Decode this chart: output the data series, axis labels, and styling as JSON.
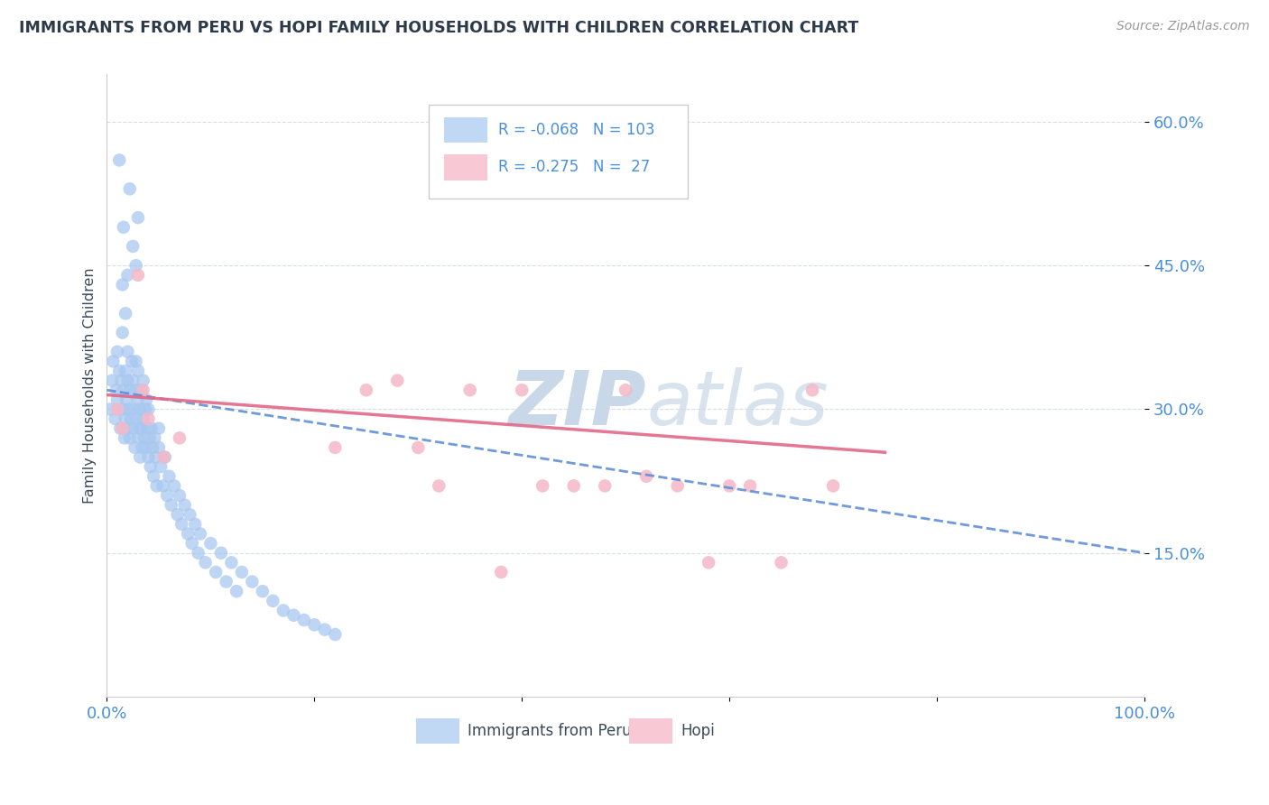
{
  "title": "IMMIGRANTS FROM PERU VS HOPI FAMILY HOUSEHOLDS WITH CHILDREN CORRELATION CHART",
  "source": "Source: ZipAtlas.com",
  "ylabel": "Family Households with Children",
  "legend_label1": "Immigrants from Peru",
  "legend_label2": "Hopi",
  "r1": "-0.068",
  "n1": "103",
  "r2": "-0.275",
  "n2": "27",
  "xlim": [
    0.0,
    1.0
  ],
  "ylim": [
    0.0,
    0.65
  ],
  "yticks": [
    0.15,
    0.3,
    0.45,
    0.6
  ],
  "ytick_labels": [
    "15.0%",
    "30.0%",
    "45.0%",
    "60.0%"
  ],
  "xticks": [
    0.0,
    0.2,
    0.4,
    0.6,
    0.8,
    1.0
  ],
  "xtick_labels": [
    "0.0%",
    "",
    "",
    "",
    "",
    "100.0%"
  ],
  "color_blue": "#a8c8f0",
  "color_pink": "#f5b8c8",
  "line_blue": "#6090d8",
  "line_pink": "#e06888",
  "watermark_color": "#c8d8e8",
  "title_color": "#2d3a4a",
  "axis_label_color": "#3a4a5a",
  "tick_label_color": "#4a90d9",
  "grid_color": "#d8dde8",
  "background_color": "#ffffff",
  "legend_box_color_blue": "#c0d8f4",
  "legend_box_color_pink": "#f8c8d4",
  "peru_x": [
    0.003,
    0.005,
    0.006,
    0.008,
    0.009,
    0.01,
    0.01,
    0.012,
    0.013,
    0.014,
    0.015,
    0.015,
    0.016,
    0.017,
    0.018,
    0.018,
    0.019,
    0.02,
    0.02,
    0.02,
    0.021,
    0.022,
    0.022,
    0.023,
    0.024,
    0.025,
    0.025,
    0.026,
    0.027,
    0.028,
    0.028,
    0.029,
    0.03,
    0.03,
    0.03,
    0.031,
    0.032,
    0.032,
    0.033,
    0.033,
    0.034,
    0.035,
    0.035,
    0.036,
    0.037,
    0.038,
    0.038,
    0.039,
    0.04,
    0.04,
    0.041,
    0.042,
    0.043,
    0.044,
    0.045,
    0.046,
    0.047,
    0.048,
    0.05,
    0.05,
    0.052,
    0.054,
    0.056,
    0.058,
    0.06,
    0.062,
    0.065,
    0.068,
    0.07,
    0.072,
    0.075,
    0.078,
    0.08,
    0.082,
    0.085,
    0.088,
    0.09,
    0.095,
    0.1,
    0.105,
    0.11,
    0.115,
    0.12,
    0.125,
    0.13,
    0.14,
    0.15,
    0.16,
    0.17,
    0.18,
    0.19,
    0.2,
    0.21,
    0.22,
    0.025,
    0.03,
    0.022,
    0.028,
    0.015,
    0.018,
    0.012,
    0.016,
    0.02
  ],
  "peru_y": [
    0.3,
    0.33,
    0.35,
    0.29,
    0.32,
    0.31,
    0.36,
    0.34,
    0.28,
    0.33,
    0.3,
    0.38,
    0.32,
    0.27,
    0.34,
    0.29,
    0.31,
    0.28,
    0.33,
    0.36,
    0.3,
    0.27,
    0.32,
    0.29,
    0.35,
    0.28,
    0.33,
    0.3,
    0.26,
    0.32,
    0.35,
    0.29,
    0.27,
    0.31,
    0.34,
    0.28,
    0.3,
    0.25,
    0.32,
    0.28,
    0.26,
    0.29,
    0.33,
    0.27,
    0.3,
    0.26,
    0.31,
    0.28,
    0.25,
    0.3,
    0.27,
    0.24,
    0.28,
    0.26,
    0.23,
    0.27,
    0.25,
    0.22,
    0.26,
    0.28,
    0.24,
    0.22,
    0.25,
    0.21,
    0.23,
    0.2,
    0.22,
    0.19,
    0.21,
    0.18,
    0.2,
    0.17,
    0.19,
    0.16,
    0.18,
    0.15,
    0.17,
    0.14,
    0.16,
    0.13,
    0.15,
    0.12,
    0.14,
    0.11,
    0.13,
    0.12,
    0.11,
    0.1,
    0.09,
    0.085,
    0.08,
    0.075,
    0.07,
    0.065,
    0.47,
    0.5,
    0.53,
    0.45,
    0.43,
    0.4,
    0.56,
    0.49,
    0.44
  ],
  "hopi_x": [
    0.01,
    0.015,
    0.03,
    0.035,
    0.04,
    0.055,
    0.07,
    0.22,
    0.25,
    0.28,
    0.3,
    0.32,
    0.35,
    0.38,
    0.4,
    0.42,
    0.45,
    0.48,
    0.5,
    0.52,
    0.55,
    0.58,
    0.6,
    0.62,
    0.65,
    0.68,
    0.7
  ],
  "hopi_y": [
    0.3,
    0.28,
    0.44,
    0.32,
    0.29,
    0.25,
    0.27,
    0.26,
    0.32,
    0.33,
    0.26,
    0.22,
    0.32,
    0.13,
    0.32,
    0.22,
    0.22,
    0.22,
    0.32,
    0.23,
    0.22,
    0.14,
    0.22,
    0.22,
    0.14,
    0.32,
    0.22
  ]
}
